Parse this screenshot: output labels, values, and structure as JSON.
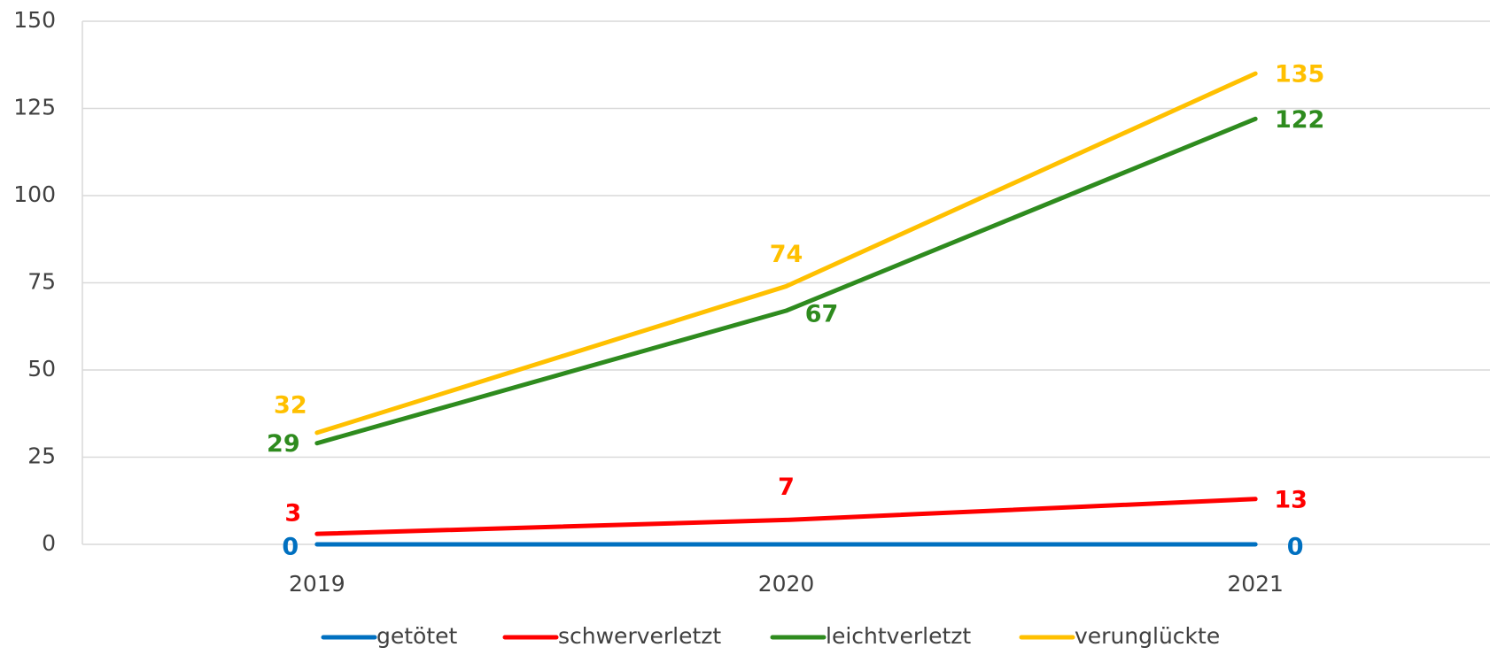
{
  "chart_data": {
    "type": "line",
    "categories": [
      "2019",
      "2020",
      "2021"
    ],
    "series": [
      {
        "name": "getötet",
        "color": "#0070c0",
        "values": [
          0,
          0,
          0
        ]
      },
      {
        "name": "schwerverletzt",
        "color": "#ff0000",
        "values": [
          3,
          7,
          13
        ]
      },
      {
        "name": "leichtverletzt",
        "color": "#2e8b1e",
        "values": [
          29,
          67,
          122
        ]
      },
      {
        "name": "verunglückte",
        "color": "#ffc000",
        "values": [
          32,
          74,
          135
        ]
      }
    ],
    "ylim": [
      0,
      150
    ],
    "yticks": [
      0,
      25,
      50,
      75,
      100,
      125,
      150
    ],
    "grid": true,
    "legend": "bottom"
  }
}
